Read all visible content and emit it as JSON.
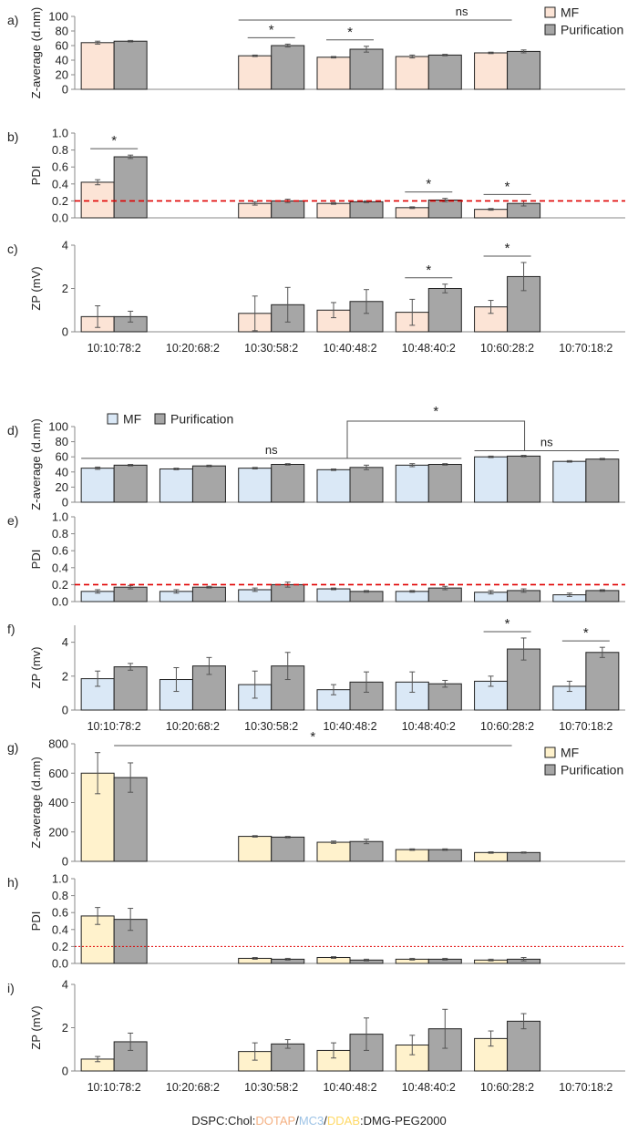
{
  "categories": [
    "10:10:78:2",
    "10:20:68:2",
    "10:30:58:2",
    "10:40:48:2",
    "10:48:40:2",
    "10:60:28:2",
    "10:70:18:2"
  ],
  "legend": {
    "mf": "MF",
    "purification": "Purification"
  },
  "caption": {
    "parts": [
      {
        "text": "DSPC:Chol:",
        "color": "#222222"
      },
      {
        "text": "DOTAP",
        "color": "#F4B183"
      },
      {
        "text": "/",
        "color": "#222222"
      },
      {
        "text": "MC3",
        "color": "#9DC3E6"
      },
      {
        "text": "/",
        "color": "#222222"
      },
      {
        "text": "DDAB",
        "color": "#FFD966"
      },
      {
        "text": ":DMG-PEG2000",
        "color": "#222222"
      }
    ]
  },
  "colors": {
    "dotap": "#FCE4D6",
    "mc3": "#DAE8F6",
    "ddab": "#FFF2CC",
    "purification": "#A6A6A6",
    "threshold": "#E00000"
  },
  "chart_data": [
    {
      "panel": "a)",
      "type": "bar",
      "ylabel": "Z-average (d.nm)",
      "ylim": [
        0,
        100
      ],
      "yticks": [
        0,
        20,
        40,
        60,
        80,
        100
      ],
      "group": "dotap",
      "series": [
        {
          "name": "MF",
          "values": [
            64,
            null,
            46,
            44,
            45,
            50,
            null
          ],
          "errors": [
            2,
            null,
            1,
            1,
            2,
            1,
            null
          ]
        },
        {
          "name": "Purification",
          "values": [
            66,
            null,
            60,
            55,
            47,
            52,
            null
          ],
          "errors": [
            1,
            null,
            2,
            4,
            1,
            2,
            null
          ]
        }
      ],
      "annotations": [
        {
          "label": "ns",
          "type": "span",
          "from": 2,
          "to": 5
        },
        {
          "label": "*",
          "type": "pair",
          "cat": 2
        },
        {
          "label": "*",
          "type": "pair",
          "cat": 3
        }
      ],
      "legend": true
    },
    {
      "panel": "b)",
      "type": "bar",
      "ylabel": "PDI",
      "ylim": [
        0,
        1
      ],
      "yticks": [
        0,
        0.2,
        0.4,
        0.6,
        0.8,
        1.0
      ],
      "group": "dotap",
      "threshold": 0.2,
      "series": [
        {
          "name": "MF",
          "values": [
            0.42,
            null,
            0.17,
            0.17,
            0.12,
            0.1,
            null
          ],
          "errors": [
            0.03,
            null,
            0.02,
            0.01,
            0.01,
            0.01,
            null
          ]
        },
        {
          "name": "Purification",
          "values": [
            0.72,
            null,
            0.2,
            0.19,
            0.21,
            0.17,
            null
          ],
          "errors": [
            0.02,
            null,
            0.02,
            0.01,
            0.02,
            0.03,
            null
          ]
        }
      ],
      "annotations": [
        {
          "label": "*",
          "type": "pair",
          "cat": 0
        },
        {
          "label": "*",
          "type": "pair",
          "cat": 4
        },
        {
          "label": "*",
          "type": "pair",
          "cat": 5
        }
      ]
    },
    {
      "panel": "c)",
      "type": "bar",
      "ylabel": "ZP (mV)",
      "ylim": [
        0,
        4
      ],
      "yticks": [
        0,
        2,
        4
      ],
      "group": "dotap",
      "series": [
        {
          "name": "MF",
          "values": [
            0.7,
            null,
            0.85,
            1.0,
            0.9,
            1.15,
            null
          ],
          "errors": [
            0.5,
            null,
            0.8,
            0.35,
            0.6,
            0.3,
            null
          ]
        },
        {
          "name": "Purification",
          "values": [
            0.7,
            null,
            1.25,
            1.4,
            2.0,
            2.55,
            null
          ],
          "errors": [
            0.25,
            null,
            0.8,
            0.55,
            0.2,
            0.65,
            null
          ]
        }
      ],
      "annotations": [
        {
          "label": "*",
          "type": "pair",
          "cat": 4
        },
        {
          "label": "*",
          "type": "pair",
          "cat": 5
        }
      ],
      "xticks": true
    },
    {
      "panel": "d)",
      "type": "bar",
      "ylabel": "Z-average (d.nm)",
      "ylim": [
        0,
        100
      ],
      "yticks": [
        0,
        20,
        40,
        60,
        80,
        100
      ],
      "group": "mc3",
      "series": [
        {
          "name": "MF",
          "values": [
            45,
            44,
            45,
            43,
            49,
            60,
            54
          ],
          "errors": [
            1.5,
            1,
            1,
            1,
            2,
            1,
            1
          ]
        },
        {
          "name": "Purification",
          "values": [
            49,
            48,
            50,
            46,
            50,
            61,
            57
          ],
          "errors": [
            1,
            1,
            1,
            3,
            1,
            1,
            1
          ]
        }
      ],
      "annotations": [
        {
          "label": "ns",
          "type": "span",
          "from": 0,
          "to": 4
        },
        {
          "label": "ns",
          "type": "span",
          "from": 5,
          "to": 6
        },
        {
          "label": "*",
          "type": "bracket"
        }
      ],
      "legend": true
    },
    {
      "panel": "e)",
      "type": "bar",
      "ylabel": "PDI",
      "ylim": [
        0,
        1
      ],
      "yticks": [
        0,
        0.2,
        0.4,
        0.6,
        0.8,
        1.0
      ],
      "group": "mc3",
      "threshold": 0.2,
      "series": [
        {
          "name": "MF",
          "values": [
            0.12,
            0.12,
            0.14,
            0.15,
            0.12,
            0.11,
            0.08
          ],
          "errors": [
            0.02,
            0.02,
            0.02,
            0.01,
            0.01,
            0.02,
            0.02
          ]
        },
        {
          "name": "Purification",
          "values": [
            0.17,
            0.17,
            0.2,
            0.12,
            0.16,
            0.13,
            0.13
          ],
          "errors": [
            0.02,
            0.01,
            0.03,
            0.01,
            0.02,
            0.02,
            0.01
          ]
        }
      ],
      "annotations": []
    },
    {
      "panel": "f)",
      "type": "bar",
      "ylabel": "ZP (mv)",
      "ylim": [
        0,
        5
      ],
      "yticks": [
        0,
        2,
        4
      ],
      "group": "mc3",
      "series": [
        {
          "name": "MF",
          "values": [
            1.85,
            1.8,
            1.5,
            1.2,
            1.65,
            1.7,
            1.4
          ],
          "errors": [
            0.45,
            0.7,
            0.8,
            0.3,
            0.6,
            0.3,
            0.3
          ]
        },
        {
          "name": "Purification",
          "values": [
            2.55,
            2.6,
            2.6,
            1.65,
            1.55,
            3.6,
            3.4
          ],
          "errors": [
            0.2,
            0.5,
            0.8,
            0.6,
            0.2,
            0.65,
            0.3
          ]
        }
      ],
      "annotations": [
        {
          "label": "*",
          "type": "pair",
          "cat": 5
        },
        {
          "label": "*",
          "type": "pair",
          "cat": 6
        }
      ],
      "xticks": true
    },
    {
      "panel": "g)",
      "type": "bar",
      "ylabel": "Z-average (d.nm)",
      "ylim": [
        0,
        800
      ],
      "yticks": [
        0,
        200,
        400,
        600,
        800
      ],
      "group": "ddab",
      "series": [
        {
          "name": "MF",
          "values": [
            600,
            null,
            170,
            130,
            80,
            60,
            null
          ],
          "errors": [
            140,
            null,
            5,
            8,
            5,
            5,
            null
          ]
        },
        {
          "name": "Purification",
          "values": [
            570,
            null,
            165,
            135,
            80,
            60,
            null
          ],
          "errors": [
            100,
            null,
            5,
            15,
            5,
            4,
            null
          ]
        }
      ],
      "annotations": [
        {
          "label": "*",
          "type": "span",
          "from": 0,
          "to": 5
        }
      ],
      "legend": true
    },
    {
      "panel": "h)",
      "type": "bar",
      "ylabel": "PDI",
      "ylim": [
        0,
        1
      ],
      "yticks": [
        0,
        0.2,
        0.4,
        0.6,
        0.8,
        1.0
      ],
      "group": "ddab",
      "threshold": 0.2,
      "series": [
        {
          "name": "MF",
          "values": [
            0.56,
            null,
            0.06,
            0.07,
            0.05,
            0.04,
            null
          ],
          "errors": [
            0.1,
            null,
            0.01,
            0.01,
            0.01,
            0.01,
            null
          ]
        },
        {
          "name": "Purification",
          "values": [
            0.52,
            null,
            0.05,
            0.04,
            0.05,
            0.05,
            null
          ],
          "errors": [
            0.13,
            null,
            0.01,
            0.01,
            0.01,
            0.02,
            null
          ]
        }
      ],
      "annotations": []
    },
    {
      "panel": "i)",
      "type": "bar",
      "ylabel": "ZP (mV)",
      "ylim": [
        0,
        4
      ],
      "yticks": [
        0,
        2,
        4
      ],
      "group": "ddab",
      "series": [
        {
          "name": "MF",
          "values": [
            0.55,
            null,
            0.9,
            0.95,
            1.2,
            1.5,
            null
          ],
          "errors": [
            0.12,
            null,
            0.4,
            0.35,
            0.45,
            0.35,
            null
          ]
        },
        {
          "name": "Purification",
          "values": [
            1.35,
            null,
            1.25,
            1.7,
            1.95,
            2.3,
            null
          ],
          "errors": [
            0.4,
            null,
            0.2,
            0.75,
            0.9,
            0.35,
            null
          ]
        }
      ],
      "annotations": [],
      "xticks": true
    }
  ]
}
